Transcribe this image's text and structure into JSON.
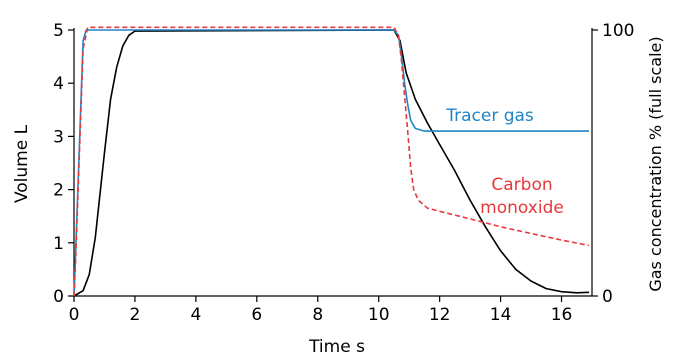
{
  "chart_data": {
    "type": "line",
    "title": "",
    "xlabel": "Time s",
    "ylabel": "Volume L",
    "y2label": "Gas concentration % (full scale)",
    "xlim": [
      0,
      17
    ],
    "ylim": [
      0,
      5
    ],
    "y2lim": [
      0,
      100
    ],
    "xticks": [
      0,
      2,
      4,
      6,
      8,
      10,
      12,
      14,
      16
    ],
    "yticks": [
      0,
      1,
      2,
      3,
      4,
      5
    ],
    "y2ticks": [
      0,
      100
    ],
    "grid": false,
    "colors": {
      "volume": "#000000",
      "tracer": "#1f86c8",
      "co": "#e8383d"
    },
    "series": [
      {
        "key": "volume",
        "axis": "left",
        "dash": false,
        "x": [
          0,
          0.3,
          0.5,
          0.7,
          0.85,
          1.0,
          1.2,
          1.4,
          1.6,
          1.8,
          2.0,
          10.5,
          10.7,
          10.9,
          11.2,
          11.6,
          12.0,
          12.5,
          13.0,
          13.5,
          14.0,
          14.5,
          15.0,
          15.5,
          16.0,
          16.5,
          16.9
        ],
        "y": [
          0,
          0.1,
          0.4,
          1.1,
          1.9,
          2.7,
          3.7,
          4.3,
          4.7,
          4.9,
          4.98,
          5.0,
          4.8,
          4.2,
          3.7,
          3.25,
          2.85,
          2.35,
          1.8,
          1.3,
          0.85,
          0.5,
          0.28,
          0.14,
          0.08,
          0.06,
          0.07
        ]
      },
      {
        "key": "tracer",
        "name": "Tracer gas",
        "axis": "right",
        "dash": false,
        "x": [
          0,
          0.05,
          0.3,
          0.4,
          10.5,
          10.65,
          10.75,
          10.85,
          10.95,
          11.05,
          11.2,
          11.5,
          16.9
        ],
        "y": [
          0,
          15,
          96,
          100,
          100,
          98,
          90,
          80,
          72,
          66,
          63,
          62,
          62
        ]
      },
      {
        "key": "co",
        "name": "Carbon monoxide",
        "name_lines": [
          "Carbon",
          "monoxide"
        ],
        "axis": "right",
        "dash": true,
        "x": [
          0,
          0.05,
          0.3,
          0.45,
          10.5,
          10.65,
          10.75,
          10.85,
          10.95,
          11.05,
          11.15,
          11.3,
          11.6,
          13.0,
          14.0,
          15.0,
          16.0,
          16.9
        ],
        "y": [
          0,
          12,
          93,
          101,
          101,
          98,
          88,
          75,
          62,
          48,
          40,
          36,
          33,
          29,
          26,
          23.5,
          21,
          19
        ]
      }
    ]
  }
}
